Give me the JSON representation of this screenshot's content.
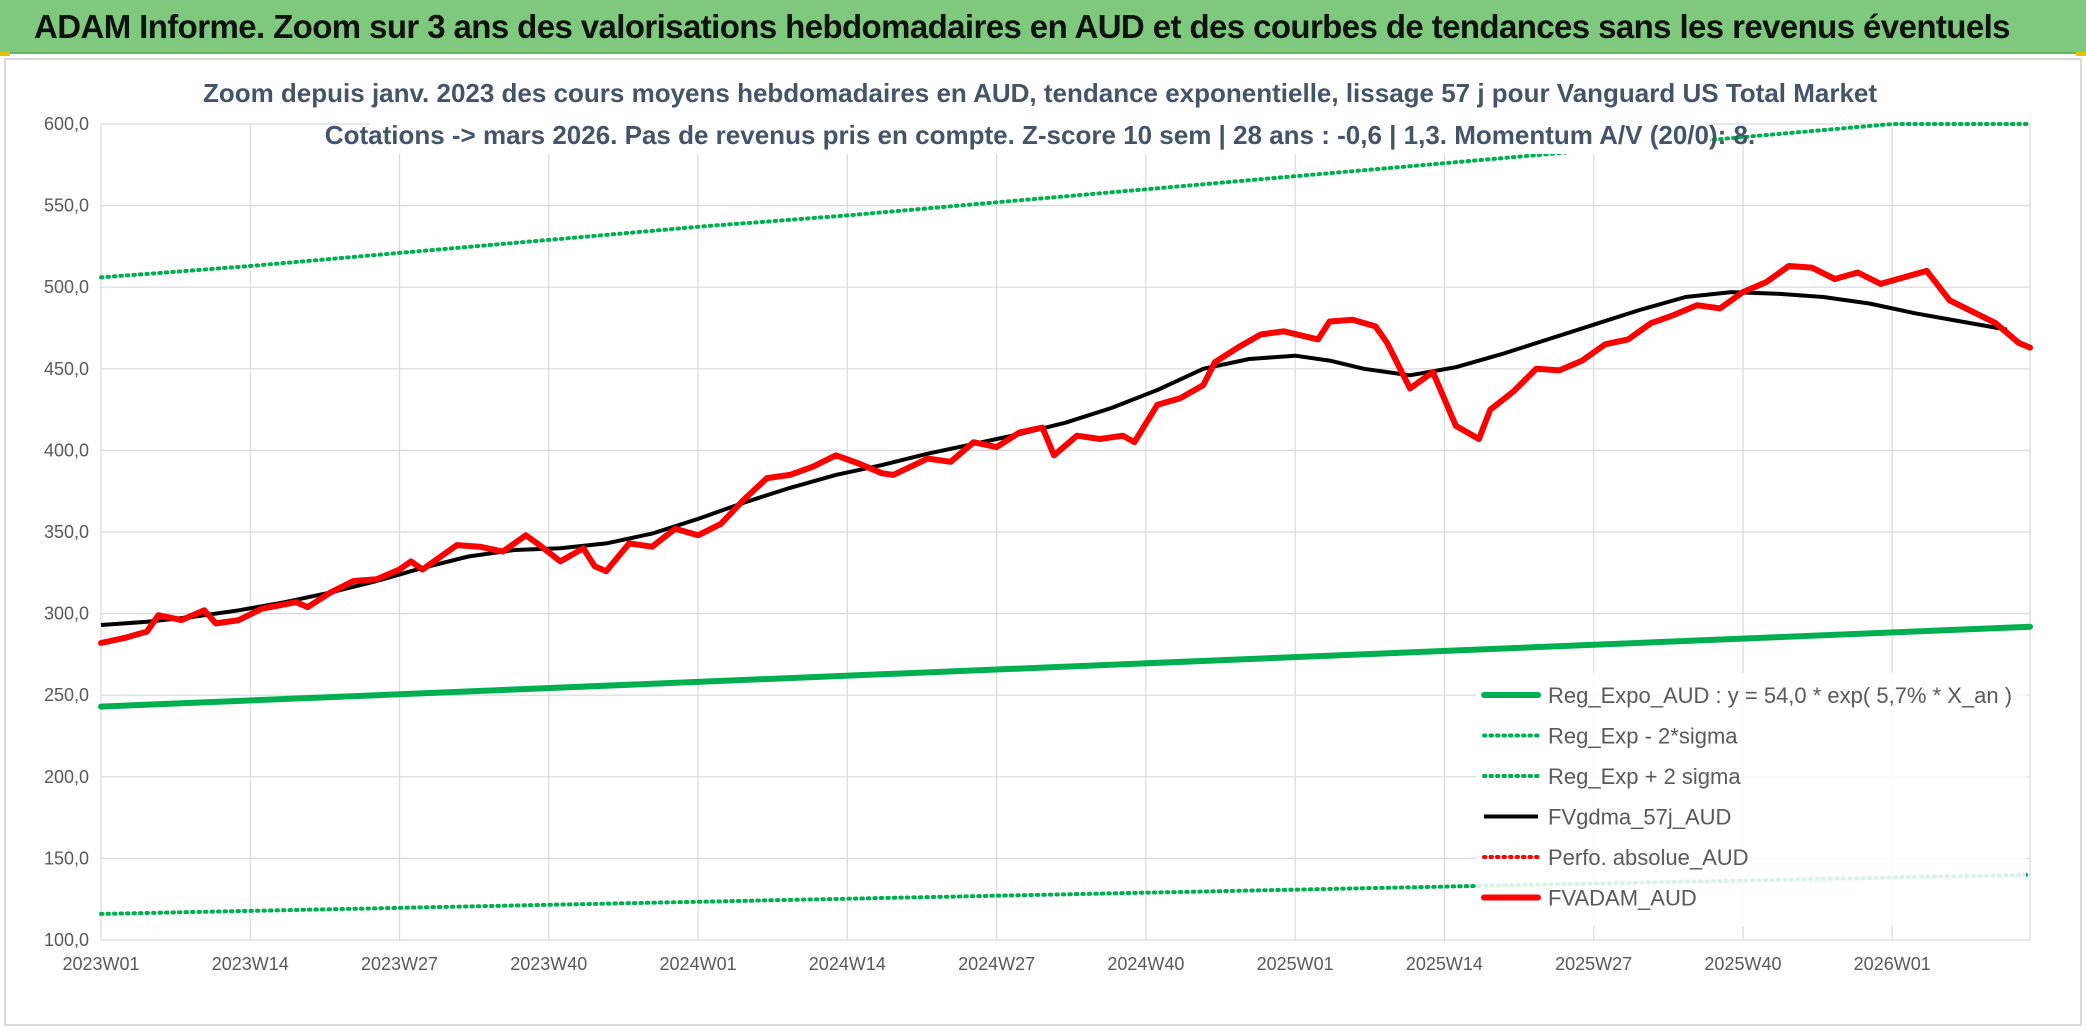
{
  "banner": {
    "title": "ADAM Informe. Zoom sur 3 ans des valorisations hebdomadaires en AUD et des courbes de tendances sans les revenus éventuels"
  },
  "colors": {
    "banner_bg": "#7fc97f",
    "green_trend": "#00b050",
    "black_ma": "#000000",
    "red_price": "#ff0000",
    "title_text": "#44546a",
    "axis_text": "#595959",
    "grid": "#d9d9d9"
  },
  "chart_data": {
    "type": "line",
    "title_lines": [
      "Zoom depuis janv. 2023 des cours moyens hebdomadaires en AUD, tendance exponentielle, lissage 57 j pour Vanguard US Total Market",
      "Cotations -> mars 2026. Pas de revenus pris en compte. Z-score 10 sem | 28 ans : -0,6 | 1,3. Momentum A/V (20/0): 8."
    ],
    "x_categories": [
      "2023W01",
      "2023W14",
      "2023W27",
      "2023W40",
      "2024W01",
      "2024W14",
      "2024W27",
      "2024W40",
      "2025W01",
      "2025W14",
      "2025W27",
      "2025W40",
      "2026W01"
    ],
    "x_range_weeks": [
      0,
      168
    ],
    "y_ticks": [
      "100,0",
      "150,0",
      "200,0",
      "250,0",
      "300,0",
      "350,0",
      "400,0",
      "450,0",
      "500,0",
      "550,0",
      "600,0"
    ],
    "ylim": [
      100,
      600
    ],
    "grid": true,
    "legend_position": "bottom-right",
    "legend": [
      {
        "label": "Reg_Expo_AUD : y = 54,0 * exp( 5,7% *  X_an )",
        "style": "thick-solid",
        "color": "#00b050"
      },
      {
        "label": "Reg_Exp - 2*sigma",
        "style": "dotted",
        "color": "#00b050"
      },
      {
        "label": "Reg_Exp + 2 sigma",
        "style": "dotted",
        "color": "#00b050"
      },
      {
        "label": "FVgdma_57j_AUD",
        "style": "solid",
        "color": "#000000"
      },
      {
        "label": "Perfo. absolue_AUD",
        "style": "dotted",
        "color": "#ff0000"
      },
      {
        "label": "FVADAM_AUD",
        "style": "thick-solid",
        "color": "#ff0000"
      }
    ],
    "series": [
      {
        "name": "Reg_Expo_AUD : y = 54,0 * exp( 5,7% *  X_an )",
        "style": "thick-solid",
        "color": "#00b050",
        "points": [
          [
            0,
            243
          ],
          [
            168,
            292
          ]
        ]
      },
      {
        "name": "Reg_Exp - 2*sigma",
        "style": "dotted",
        "color": "#00b050",
        "points": [
          [
            0,
            116
          ],
          [
            168,
            140
          ]
        ]
      },
      {
        "name": "Reg_Exp + 2 sigma",
        "style": "dotted",
        "color": "#00b050",
        "points": [
          [
            0,
            506
          ],
          [
            13,
            513
          ],
          [
            26,
            521
          ],
          [
            39,
            529
          ],
          [
            52,
            537
          ],
          [
            65,
            544
          ],
          [
            78,
            552
          ],
          [
            91,
            560
          ],
          [
            104,
            568
          ],
          [
            117,
            576
          ],
          [
            130,
            584
          ],
          [
            143,
            592
          ],
          [
            156,
            600
          ],
          [
            168,
            600
          ]
        ]
      },
      {
        "name": "FVgdma_57j_AUD",
        "style": "solid",
        "color": "#000000",
        "points": [
          [
            0,
            293
          ],
          [
            4,
            295
          ],
          [
            8,
            298
          ],
          [
            12,
            302
          ],
          [
            16,
            307
          ],
          [
            20,
            313
          ],
          [
            24,
            320
          ],
          [
            28,
            328
          ],
          [
            32,
            335
          ],
          [
            36,
            339
          ],
          [
            40,
            340
          ],
          [
            44,
            343
          ],
          [
            48,
            349
          ],
          [
            52,
            358
          ],
          [
            56,
            368
          ],
          [
            60,
            377
          ],
          [
            64,
            385
          ],
          [
            68,
            391
          ],
          [
            72,
            398
          ],
          [
            76,
            404
          ],
          [
            80,
            410
          ],
          [
            84,
            417
          ],
          [
            88,
            426
          ],
          [
            92,
            437
          ],
          [
            96,
            450
          ],
          [
            100,
            456
          ],
          [
            104,
            458
          ],
          [
            107,
            455
          ],
          [
            110,
            450
          ],
          [
            114,
            446
          ],
          [
            118,
            451
          ],
          [
            122,
            459
          ],
          [
            126,
            468
          ],
          [
            130,
            477
          ],
          [
            134,
            486
          ],
          [
            138,
            494
          ],
          [
            142,
            497
          ],
          [
            146,
            496
          ],
          [
            150,
            494
          ],
          [
            154,
            490
          ],
          [
            158,
            484
          ],
          [
            162,
            479
          ],
          [
            166,
            474
          ]
        ]
      },
      {
        "name": "FVADAM_AUD",
        "style": "thick-solid",
        "color": "#ff0000",
        "points": [
          [
            0,
            282
          ],
          [
            2,
            285
          ],
          [
            4,
            289
          ],
          [
            5,
            299
          ],
          [
            7,
            296
          ],
          [
            9,
            302
          ],
          [
            10,
            294
          ],
          [
            12,
            296
          ],
          [
            14,
            303
          ],
          [
            17,
            307
          ],
          [
            18,
            304
          ],
          [
            20,
            313
          ],
          [
            22,
            320
          ],
          [
            24,
            321
          ],
          [
            26,
            327
          ],
          [
            27,
            332
          ],
          [
            28,
            327
          ],
          [
            30,
            337
          ],
          [
            31,
            342
          ],
          [
            33,
            341
          ],
          [
            35,
            338
          ],
          [
            37,
            348
          ],
          [
            38,
            343
          ],
          [
            40,
            332
          ],
          [
            42,
            340
          ],
          [
            43,
            329
          ],
          [
            44,
            326
          ],
          [
            46,
            343
          ],
          [
            48,
            341
          ],
          [
            50,
            352
          ],
          [
            52,
            348
          ],
          [
            54,
            355
          ],
          [
            56,
            370
          ],
          [
            58,
            383
          ],
          [
            60,
            385
          ],
          [
            62,
            390
          ],
          [
            64,
            397
          ],
          [
            66,
            392
          ],
          [
            68,
            386
          ],
          [
            69,
            385
          ],
          [
            72,
            395
          ],
          [
            74,
            393
          ],
          [
            76,
            405
          ],
          [
            78,
            402
          ],
          [
            80,
            411
          ],
          [
            82,
            414
          ],
          [
            83,
            397
          ],
          [
            85,
            409
          ],
          [
            87,
            407
          ],
          [
            89,
            409
          ],
          [
            90,
            405
          ],
          [
            92,
            428
          ],
          [
            94,
            432
          ],
          [
            96,
            440
          ],
          [
            97,
            454
          ],
          [
            99,
            463
          ],
          [
            101,
            471
          ],
          [
            103,
            473
          ],
          [
            106,
            468
          ],
          [
            107,
            479
          ],
          [
            109,
            480
          ],
          [
            111,
            476
          ],
          [
            112,
            466
          ],
          [
            114,
            438
          ],
          [
            116,
            448
          ],
          [
            118,
            415
          ],
          [
            120,
            407
          ],
          [
            121,
            425
          ],
          [
            123,
            436
          ],
          [
            125,
            450
          ],
          [
            127,
            449
          ],
          [
            129,
            455
          ],
          [
            131,
            465
          ],
          [
            133,
            468
          ],
          [
            135,
            478
          ],
          [
            137,
            483
          ],
          [
            139,
            489
          ],
          [
            141,
            487
          ],
          [
            143,
            497
          ],
          [
            145,
            503
          ],
          [
            147,
            513
          ],
          [
            149,
            512
          ],
          [
            151,
            505
          ],
          [
            153,
            509
          ],
          [
            155,
            502
          ],
          [
            157,
            506
          ],
          [
            159,
            510
          ],
          [
            161,
            492
          ],
          [
            163,
            485
          ],
          [
            165,
            478
          ],
          [
            167,
            466
          ],
          [
            168,
            463
          ]
        ]
      }
    ]
  }
}
